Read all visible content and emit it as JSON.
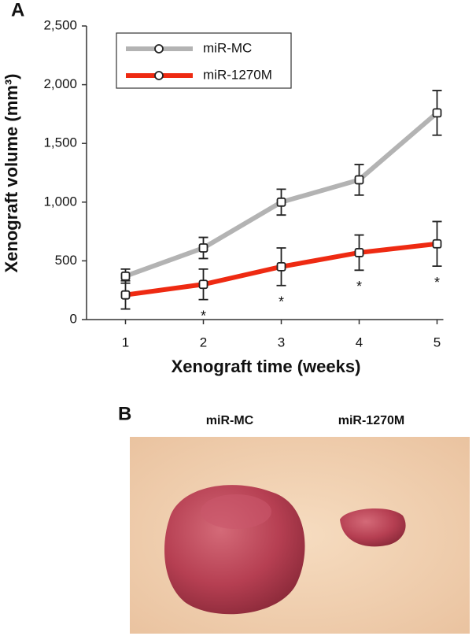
{
  "panels": {
    "a_label": "A",
    "b_label": "B"
  },
  "chart_data": {
    "type": "line",
    "ylabel": "Xenograft volume (mm³)",
    "xlabel": "Xenograft time (weeks)",
    "categories": [
      "1",
      "2",
      "3",
      "4",
      "5"
    ],
    "ylim": [
      0,
      2500
    ],
    "yticks": [
      0,
      500,
      {
        "value": 1000,
        "label": "1,000"
      },
      {
        "value": 1500,
        "label": "1,500"
      },
      {
        "value": 2000,
        "label": "2,000"
      },
      {
        "value": 2500,
        "label": "2,500"
      }
    ],
    "legend": "upper left",
    "series": [
      {
        "name": "miR-MC",
        "color": "#b3b3b3",
        "values": [
          370,
          610,
          1000,
          1190,
          1760
        ],
        "errors": [
          60,
          90,
          110,
          130,
          190
        ]
      },
      {
        "name": "miR-1270M",
        "color": "#ee2a12",
        "values": [
          210,
          300,
          450,
          570,
          645
        ],
        "errors": [
          120,
          130,
          160,
          150,
          190
        ]
      }
    ],
    "significance_labels": [
      null,
      "*",
      "*",
      "*",
      "*"
    ]
  },
  "photo": {
    "labels": [
      "miR-MC",
      "miR-1270M"
    ]
  }
}
